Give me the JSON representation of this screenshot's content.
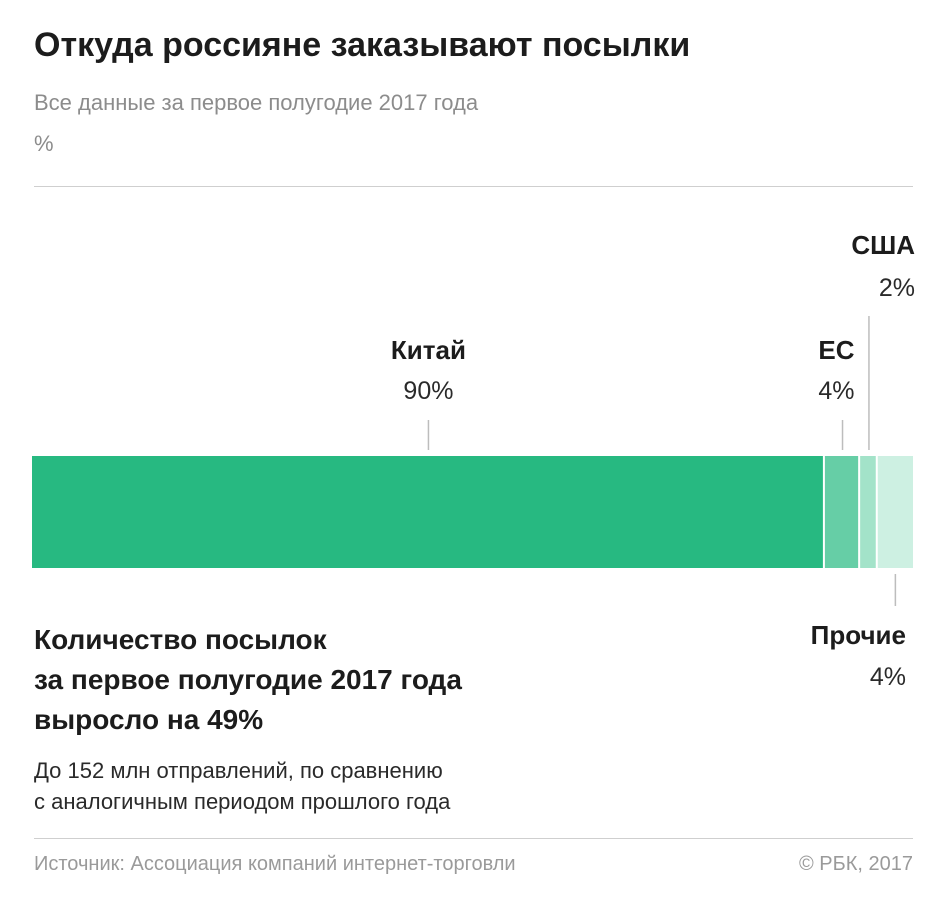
{
  "header": {
    "title": "Откуда россияне заказывают посылки",
    "subtitle": "Все данные за первое полугодие 2017 года",
    "unit": "%"
  },
  "chart_data": {
    "type": "bar",
    "orientation": "horizontal-stacked",
    "title": "Откуда россияне заказывают посылки",
    "subtitle": "Все данные за первое полугодие 2017 года",
    "unit": "%",
    "total": 100,
    "segments": [
      {
        "name": "Китай",
        "value": 90,
        "label": "90%",
        "color": "#27b981"
      },
      {
        "name": "ЕС",
        "value": 4,
        "label": "4%",
        "color": "#66cea6"
      },
      {
        "name": "США",
        "value": 2,
        "label": "2%",
        "color": "#a3e3c9"
      },
      {
        "name": "Прочие",
        "value": 4,
        "label": "4%",
        "color": "#cdf0e2"
      }
    ],
    "label_color": "#1c1c1c",
    "leader_color": "#bdbdbd"
  },
  "note": {
    "head_lines": [
      "Количество посылок",
      "за первое полугодие 2017 года",
      "выросло на 49%"
    ],
    "text_lines": [
      "До 152 млн отправлений, по сравнению",
      "с аналогичным периодом прошлого года"
    ]
  },
  "footer": {
    "source": "Источник: Ассоциация компаний интернет-торговли",
    "copyright": "© РБК, 2017"
  }
}
